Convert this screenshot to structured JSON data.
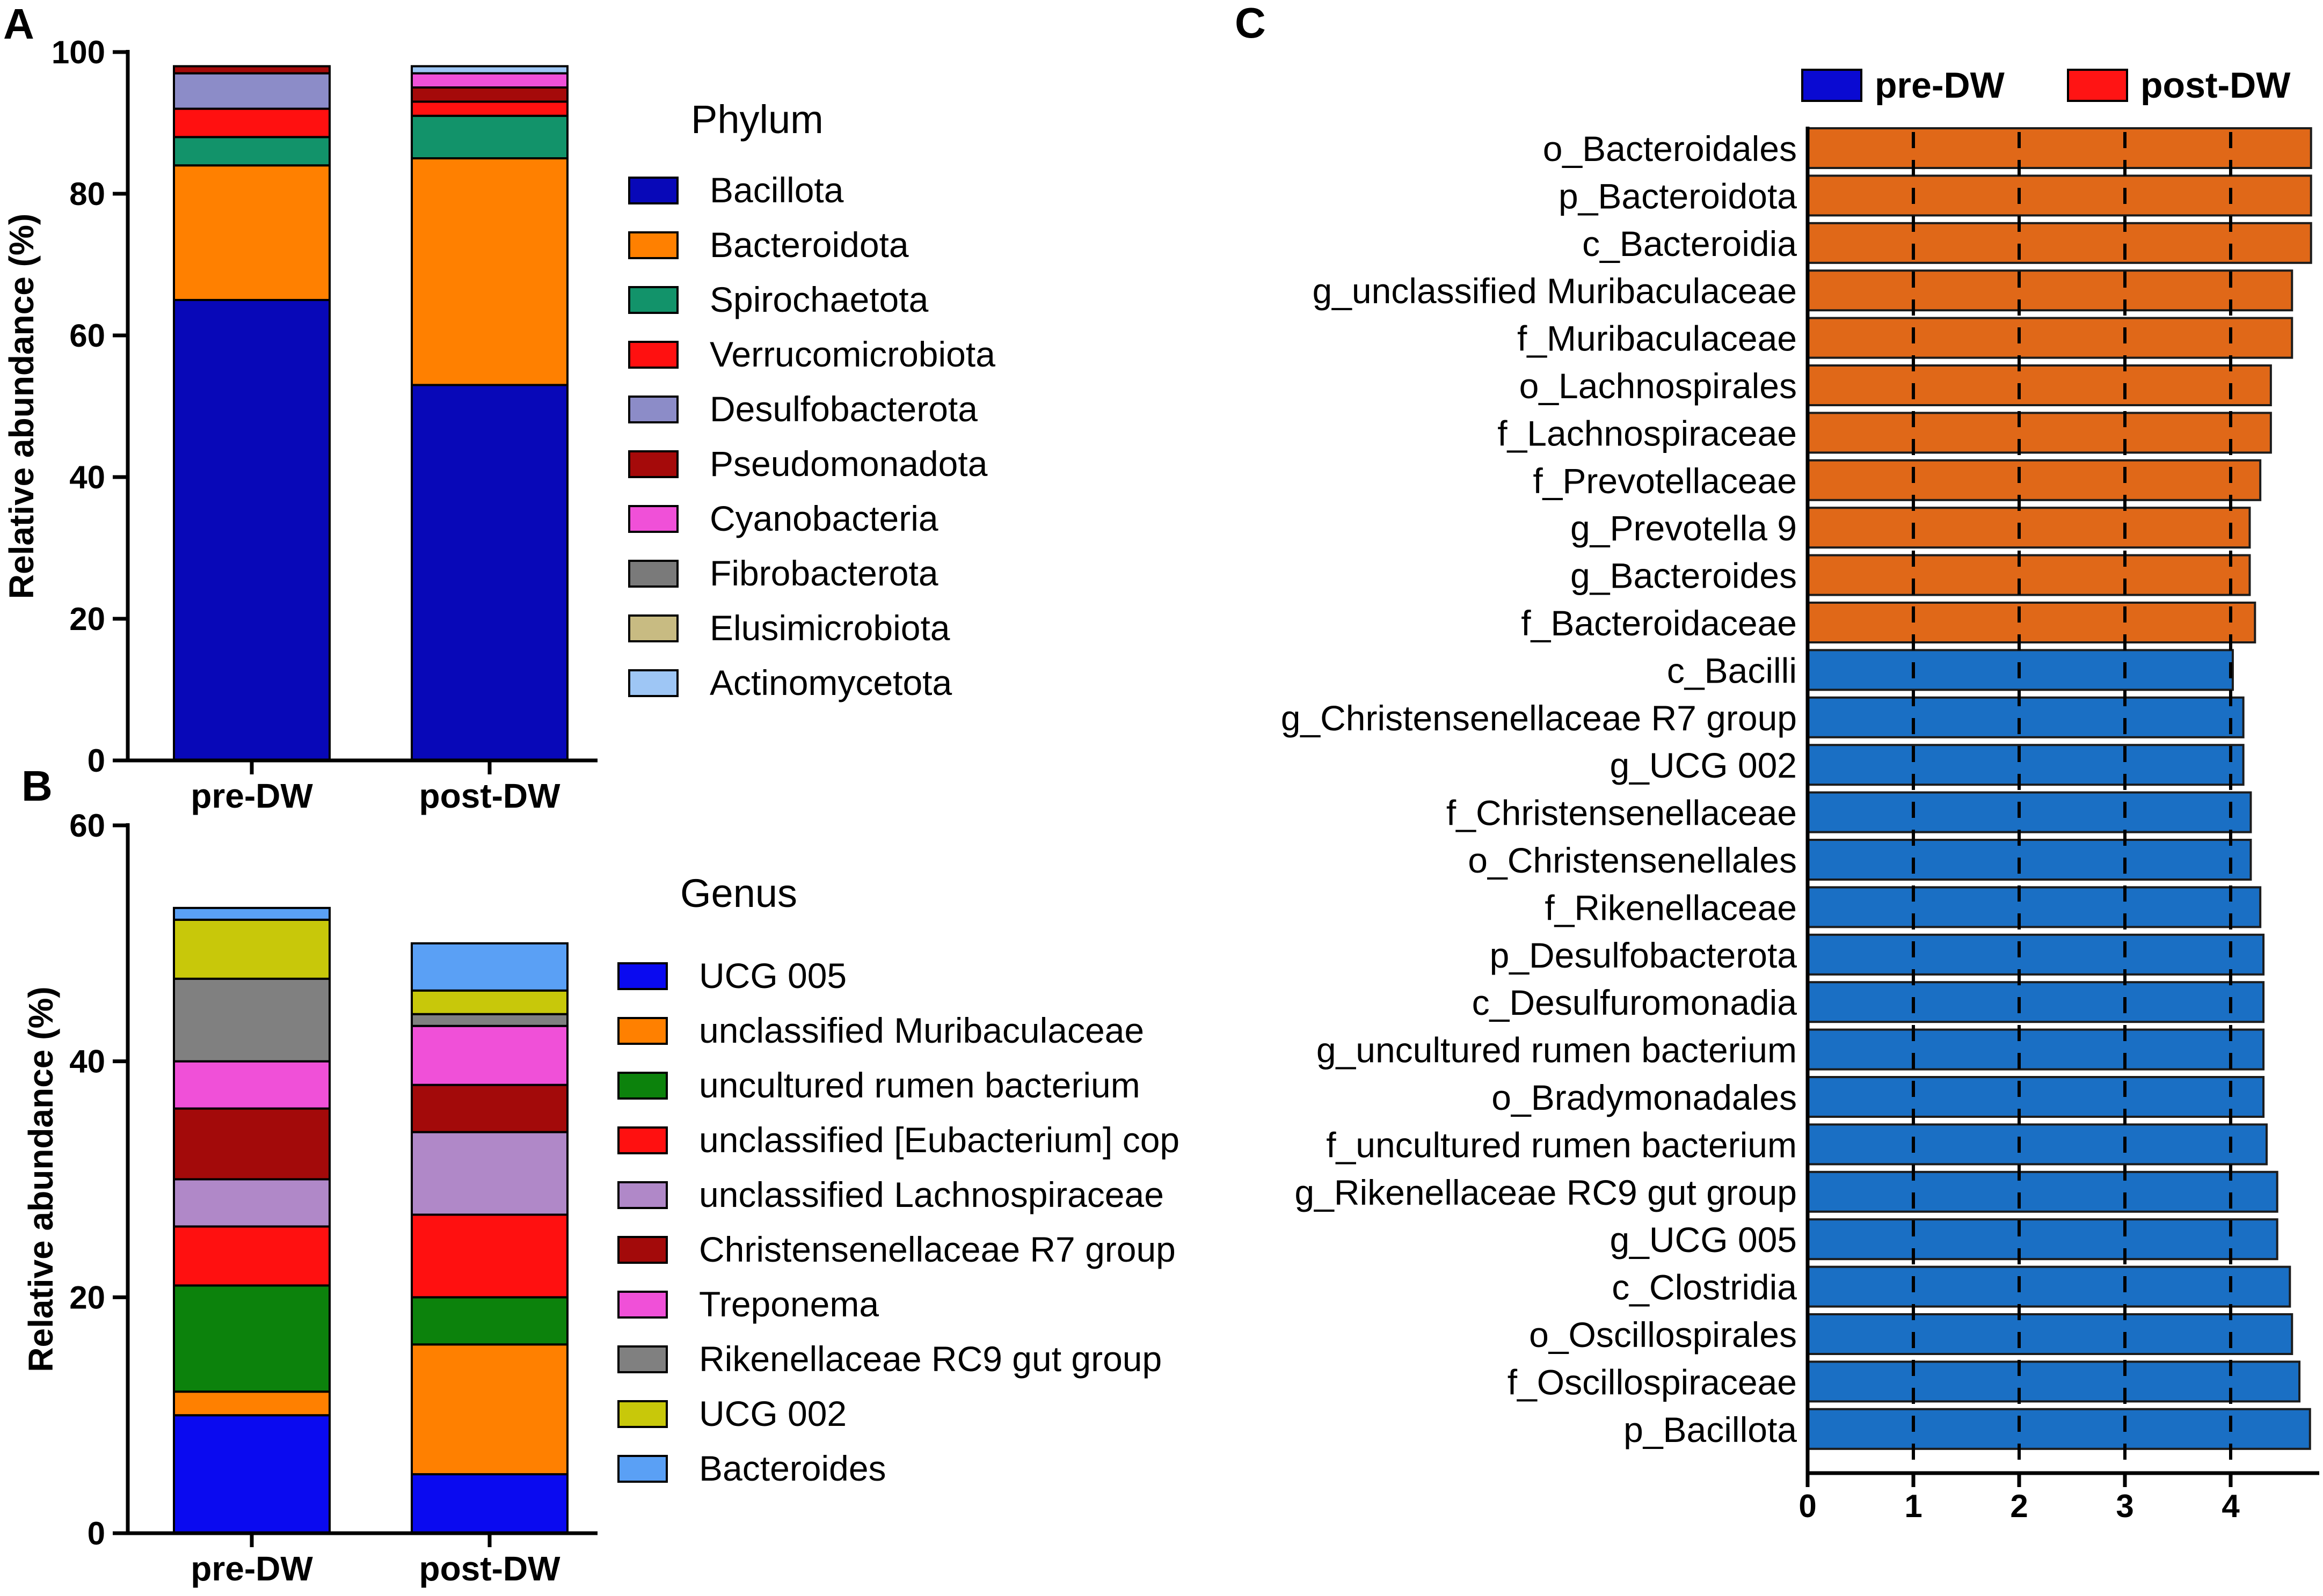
{
  "chart_data": [
    {
      "panel": "A",
      "type": "bar",
      "stacked": true,
      "categories": [
        "pre-DW",
        "post-DW"
      ],
      "ylabel": "Relative abundance (%)",
      "ylim": [
        0,
        100
      ],
      "yticks": [
        0,
        20,
        40,
        60,
        80,
        100
      ],
      "legend_title": "Phylum",
      "series": [
        {
          "name": "Bacillota",
          "color": "#0808b8",
          "values": [
            65,
            53
          ]
        },
        {
          "name": "Bacteroidota",
          "color": "#ff8000",
          "values": [
            19,
            32
          ]
        },
        {
          "name": "Spirochaetota",
          "color": "#12936a",
          "values": [
            4,
            6
          ]
        },
        {
          "name": "Verrucomicrobiota",
          "color": "#ff1010",
          "values": [
            4,
            2
          ]
        },
        {
          "name": "Desulfobacterota",
          "color": "#8c8cc8",
          "values": [
            5,
            0
          ]
        },
        {
          "name": "Pseudomonadota",
          "color": "#a50a0a",
          "values": [
            1,
            2
          ]
        },
        {
          "name": "Cyanobacteria",
          "color": "#f050d8",
          "values": [
            0,
            2
          ]
        },
        {
          "name": "Fibrobacterota",
          "color": "#7a7a7a",
          "values": [
            0,
            0
          ]
        },
        {
          "name": "Elusimicrobiota",
          "color": "#c8bb82",
          "values": [
            0,
            0
          ]
        },
        {
          "name": "Actinomycetota",
          "color": "#9ec6f5",
          "values": [
            0,
            1
          ]
        }
      ]
    },
    {
      "panel": "B",
      "type": "bar",
      "stacked": true,
      "categories": [
        "pre-DW",
        "post-DW"
      ],
      "ylabel": "Relative abundance (%)",
      "ylim": [
        0,
        60
      ],
      "yticks": [
        0,
        20,
        40,
        60
      ],
      "legend_title": "Genus",
      "series": [
        {
          "name": "UCG 005",
          "color": "#0a0af0",
          "values": [
            10,
            5
          ]
        },
        {
          "name": "unclassified Muribaculaceae",
          "color": "#ff8000",
          "values": [
            2,
            11
          ]
        },
        {
          "name": "uncultured rumen bacterium",
          "color": "#0c820c",
          "values": [
            9,
            4
          ]
        },
        {
          "name": "unclassified [Eubacterium] cop",
          "color": "#ff1010",
          "values": [
            5,
            7
          ]
        },
        {
          "name": "unclassified Lachnospiraceae",
          "color": "#b088c8",
          "values": [
            4,
            7
          ]
        },
        {
          "name": "Christensenellaceae R7 group",
          "color": "#a30a0a",
          "values": [
            6,
            4
          ]
        },
        {
          "name": "Treponema",
          "color": "#f050d8",
          "values": [
            4,
            5
          ]
        },
        {
          "name": "Rikenellaceae RC9 gut group",
          "color": "#808080",
          "values": [
            7,
            1
          ]
        },
        {
          "name": "UCG 002",
          "color": "#c8c80a",
          "values": [
            5,
            2
          ]
        },
        {
          "name": "Bacteroides",
          "color": "#5aa0f5",
          "values": [
            1,
            4
          ]
        }
      ]
    },
    {
      "panel": "C",
      "type": "bar",
      "orientation": "horizontal",
      "xlim": [
        0,
        4.75
      ],
      "xticks": [
        0,
        1,
        2,
        3,
        4
      ],
      "legend": [
        {
          "name": "pre-DW",
          "color": "#0a0ad2"
        },
        {
          "name": "post-DW",
          "color": "#ff1414"
        }
      ],
      "group_colors": {
        "post-DW": "#e06818",
        "pre-DW": "#1a6fc4"
      },
      "categories": [
        "o_Bacteroidales",
        "p_Bacteroidota",
        "c_Bacteroidia",
        "g_unclassified Muribaculaceae",
        "f_Muribaculaceae",
        "o_Lachnospirales",
        "f_Lachnospiraceae",
        "f_Prevotellaceae",
        "g_Prevotella 9",
        "g_Bacteroides",
        "f_Bacteroidaceae",
        "c_Bacilli",
        "g_Christensenellaceae R7 group",
        "g_UCG 002",
        "f_Christensenellaceae",
        "o_Christensenellales",
        "f_Rikenellaceae",
        "p_Desulfobacterota",
        "c_Desulfuromonadia",
        "g_uncultured rumen bacterium",
        "o_Bradymonadales",
        "f_uncultured rumen bacterium",
        "g_Rikenellaceae RC9 gut group",
        "g_UCG 005",
        "c_Clostridia",
        "o_Oscillospirales",
        "f_Oscillospiraceae",
        "p_Bacillota"
      ],
      "values": [
        4.76,
        4.76,
        4.76,
        4.58,
        4.58,
        4.38,
        4.38,
        4.28,
        4.18,
        4.18,
        4.23,
        4.02,
        4.12,
        4.12,
        4.19,
        4.19,
        4.28,
        4.31,
        4.31,
        4.31,
        4.31,
        4.34,
        4.44,
        4.44,
        4.56,
        4.58,
        4.65,
        4.75
      ],
      "groups": [
        "post-DW",
        "post-DW",
        "post-DW",
        "post-DW",
        "post-DW",
        "post-DW",
        "post-DW",
        "post-DW",
        "post-DW",
        "post-DW",
        "post-DW",
        "pre-DW",
        "pre-DW",
        "pre-DW",
        "pre-DW",
        "pre-DW",
        "pre-DW",
        "pre-DW",
        "pre-DW",
        "pre-DW",
        "pre-DW",
        "pre-DW",
        "pre-DW",
        "pre-DW",
        "pre-DW",
        "pre-DW",
        "pre-DW",
        "pre-DW"
      ]
    }
  ],
  "panel_labels": {
    "a": "A",
    "b": "B",
    "c": "C"
  }
}
